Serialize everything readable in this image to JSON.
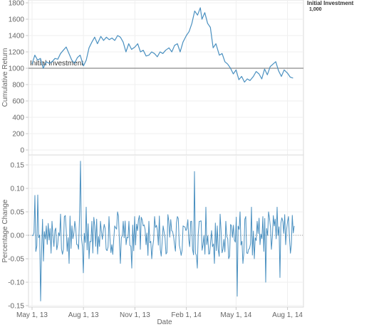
{
  "legend": {
    "title": "Initial Investment",
    "value": "1,000"
  },
  "chart_data": [
    {
      "type": "line",
      "ylabel": "Cumulative Return",
      "xlabel": "",
      "ylim": [
        0,
        1800
      ],
      "yticks": [
        0,
        200,
        400,
        600,
        800,
        1000,
        1200,
        1400,
        1600,
        1800
      ],
      "reference_line": {
        "value": 1000,
        "label": "Initial Investment",
        "color": "#9e9e9e"
      },
      "series_color": "#4a90c0",
      "x_start": "2013-05-01",
      "x_end": "2014-08-13",
      "series": [
        {
          "x": [
            "2013-05-01",
            "2013-05-06",
            "2013-05-11",
            "2013-05-16",
            "2013-05-21",
            "2013-05-26",
            "2013-06-01",
            "2013-06-06",
            "2013-06-11",
            "2013-06-16",
            "2013-06-21",
            "2013-06-26",
            "2013-07-01",
            "2013-07-06",
            "2013-07-11",
            "2013-07-16",
            "2013-07-21",
            "2013-07-26",
            "2013-08-01",
            "2013-08-06",
            "2013-08-11",
            "2013-08-16",
            "2013-08-21",
            "2013-08-26",
            "2013-09-01",
            "2013-09-06",
            "2013-09-11",
            "2013-09-16",
            "2013-09-21",
            "2013-09-26",
            "2013-10-01",
            "2013-10-06",
            "2013-10-11",
            "2013-10-16",
            "2013-10-21",
            "2013-10-26",
            "2013-11-01",
            "2013-11-06",
            "2013-11-11",
            "2013-11-16",
            "2013-11-21",
            "2013-11-26",
            "2013-12-01",
            "2013-12-06",
            "2013-12-11",
            "2013-12-16",
            "2013-12-21",
            "2013-12-26",
            "2014-01-01",
            "2014-01-06",
            "2014-01-11",
            "2014-01-16",
            "2014-01-21",
            "2014-01-26",
            "2014-02-01",
            "2014-02-06",
            "2014-02-11",
            "2014-02-16",
            "2014-02-21",
            "2014-02-26",
            "2014-03-01",
            "2014-03-06",
            "2014-03-11",
            "2014-03-16",
            "2014-03-21",
            "2014-03-26",
            "2014-04-01",
            "2014-04-06",
            "2014-04-11",
            "2014-04-16",
            "2014-04-21",
            "2014-04-26",
            "2014-05-01",
            "2014-05-06",
            "2014-05-11",
            "2014-05-16",
            "2014-05-21",
            "2014-05-26",
            "2014-06-01",
            "2014-06-06",
            "2014-06-11",
            "2014-06-16",
            "2014-06-21",
            "2014-06-26",
            "2014-07-01",
            "2014-07-06",
            "2014-07-11",
            "2014-07-16",
            "2014-07-21",
            "2014-07-26",
            "2014-08-01",
            "2014-08-06",
            "2014-08-11"
          ],
          "y": [
            1050,
            1160,
            1100,
            1120,
            1000,
            1080,
            1060,
            1080,
            1120,
            1110,
            1180,
            1220,
            1260,
            1180,
            1100,
            1060,
            1130,
            1160,
            1030,
            1100,
            1250,
            1320,
            1380,
            1300,
            1390,
            1340,
            1380,
            1350,
            1370,
            1340,
            1400,
            1380,
            1320,
            1200,
            1300,
            1230,
            1260,
            1300,
            1200,
            1220,
            1150,
            1160,
            1200,
            1180,
            1140,
            1200,
            1180,
            1220,
            1250,
            1200,
            1280,
            1300,
            1200,
            1320,
            1400,
            1450,
            1550,
            1700,
            1650,
            1740,
            1600,
            1680,
            1550,
            1500,
            1250,
            1300,
            1160,
            1180,
            1080,
            1050,
            1000,
            930,
            980,
            860,
            900,
            830,
            870,
            850,
            900,
            960,
            930,
            870,
            990,
            920,
            1020,
            1050,
            1080,
            970,
            900,
            980,
            940,
            890,
            880
          ]
        }
      ]
    },
    {
      "type": "line",
      "ylabel": "Percentage Change",
      "xlabel": "Date",
      "ylim": [
        -0.155,
        0.17
      ],
      "yticks": [
        -0.15,
        -0.1,
        -0.05,
        0.0,
        0.05,
        0.1,
        0.15
      ],
      "ytick_labels": [
        "-0.15",
        "-0.10",
        "-0.05",
        "0.00",
        "0.05",
        "0.10",
        "0.15"
      ],
      "reference_line": {
        "value": 0,
        "style": "dotted",
        "color": "#999999"
      },
      "series_color": "#4a90c0",
      "x_ticks": [
        "2013-05-01",
        "2013-08-01",
        "2013-11-01",
        "2014-02-01",
        "2014-05-01",
        "2014-08-01"
      ],
      "x_tick_labels": [
        "May 1, 13",
        "Aug 1, 13",
        "Nov 1, 13",
        "Feb 1, 14",
        "May 1, 14",
        "Aug 1, 14"
      ],
      "x_start": "2013-05-01",
      "x_end": "2014-08-13",
      "seed_values": [
        0.0,
        0.085,
        0.086,
        -0.14,
        -0.055,
        0.02,
        -0.01,
        0.03,
        0.01,
        -0.02,
        0.045,
        -0.03,
        0.01,
        -0.06,
        0.02,
        0.03,
        -0.02,
        0.158,
        -0.08,
        0.06,
        -0.05,
        0.03,
        0.02,
        -0.04,
        0.03,
        0.01,
        -0.03,
        0.04,
        -0.02,
        0.02,
        0.05,
        -0.06,
        0.03,
        -0.02,
        0.03,
        -0.07,
        0.04,
        0.01,
        -0.03,
        0.02,
        -0.02,
        0.03,
        -0.05,
        0.04,
        0.01,
        -0.03,
        0.02,
        -0.04,
        0.03,
        0.01,
        -0.02,
        0.04,
        -0.03,
        0.02,
        0.01,
        -0.01,
        0.03,
        0.136,
        -0.07,
        0.03,
        -0.02,
        0.06,
        -0.04,
        0.01,
        -0.06,
        0.02,
        0.045,
        -0.03,
        0.03,
        -0.05,
        0.02,
        -0.01,
        -0.13,
        0.05,
        -0.06,
        0.04,
        -0.03,
        0.06,
        -0.05,
        0.03,
        -0.02,
        0.04,
        -0.1,
        0.05,
        -0.03,
        0.02,
        0.06,
        -0.09,
        0.03,
        -0.02,
        0.04,
        -0.02,
        0.02
      ]
    }
  ]
}
